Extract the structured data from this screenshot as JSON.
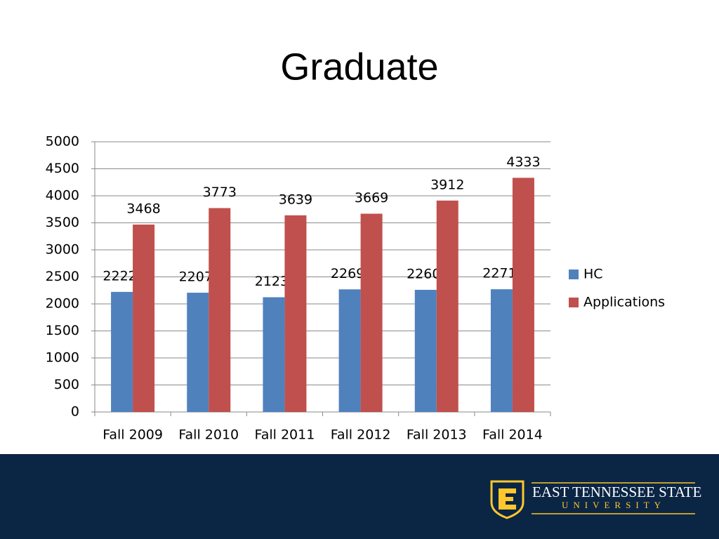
{
  "chart_data": {
    "type": "bar",
    "title": "Graduate",
    "categories": [
      "Fall 2009",
      "Fall 2010",
      "Fall 2011",
      "Fall 2012",
      "Fall 2013",
      "Fall 2014"
    ],
    "series": [
      {
        "name": "HC",
        "color": "#4f81bd",
        "values": [
          2222,
          2207,
          2123,
          2269,
          2260,
          2271
        ]
      },
      {
        "name": "Applications",
        "color": "#c0504d",
        "values": [
          3468,
          3773,
          3639,
          3669,
          3912,
          4333
        ]
      }
    ],
    "ylim": [
      0,
      5000
    ],
    "yticks": [
      0,
      500,
      1000,
      1500,
      2000,
      2500,
      3000,
      3500,
      4000,
      4500,
      5000
    ],
    "grid": true,
    "legend": "right"
  },
  "footer": {
    "name_line": "EAST TENNESSEE STATE",
    "sub_line": "UNIVERSITY"
  }
}
